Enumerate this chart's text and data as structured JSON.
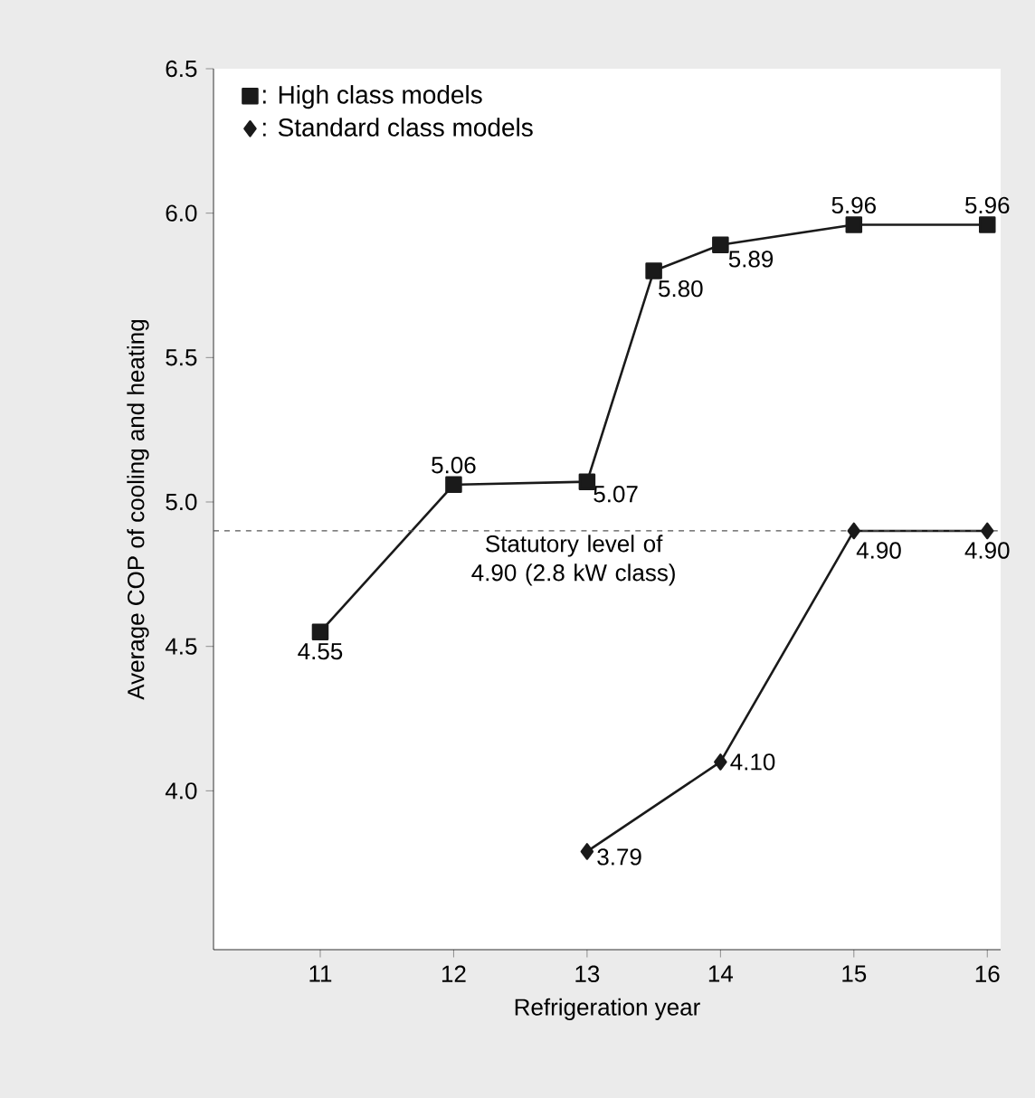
{
  "chart_data": {
    "type": "line",
    "xlabel": "Refrigeration year",
    "ylabel": "Average COP of cooling and heating",
    "xlim": [
      10.2,
      16.1
    ],
    "ylim": [
      3.45,
      6.5
    ],
    "xticks": [
      11,
      12,
      13,
      14,
      15,
      16
    ],
    "yticks": [
      {
        "value": 4,
        "label": "4.0"
      },
      4.5,
      {
        "value": 5,
        "label": "5.0"
      },
      5.5,
      {
        "value": 6,
        "label": "6.0"
      },
      6.5
    ],
    "series": [
      {
        "name": ": High class models",
        "color": "#1a1a1a",
        "marker": "square",
        "x": [
          11,
          12,
          13,
          13.5,
          14,
          15,
          16
        ],
        "values": [
          4.55,
          5.06,
          5.07,
          5.8,
          5.89,
          5.96,
          5.96
        ],
        "value_labels": [
          "4.55",
          "5.06",
          "5.07",
          "5.80",
          "5.89",
          "5.96",
          "5.96"
        ]
      },
      {
        "name": ": Standard class models",
        "color": "#1a1a1a",
        "marker": "diamond",
        "x": [
          13,
          14,
          15,
          16
        ],
        "values": [
          3.79,
          4.1,
          4.9,
          4.9
        ],
        "value_labels": [
          "3.79",
          "4.10",
          "4.90",
          "4.90"
        ]
      }
    ],
    "ref_lines": [
      {
        "axis": "y",
        "value": 4.9,
        "label": "Statutory level of 4.90 (2.8 kW class)",
        "color": "#555555",
        "line_style": "dashed"
      }
    ],
    "legend": "top left",
    "grid": false,
    "line_style": "solid"
  }
}
